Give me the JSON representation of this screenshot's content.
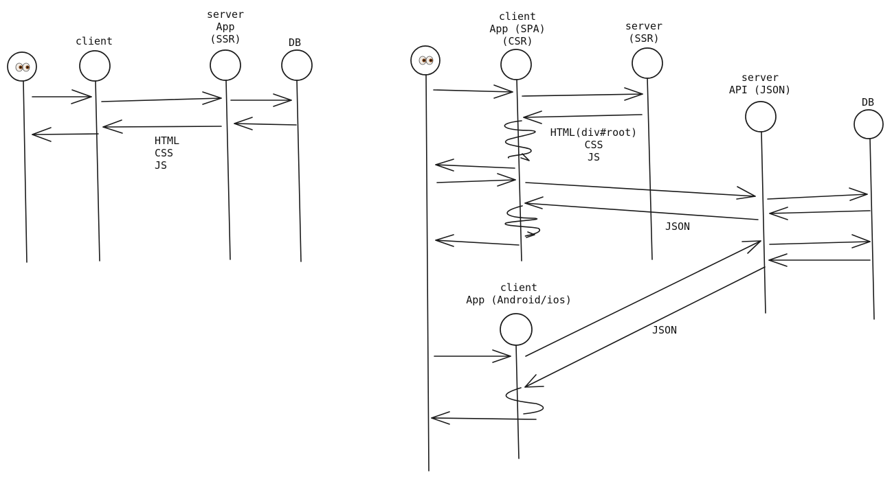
{
  "ssr_diagram": {
    "client_label": "client",
    "server_label_1": "server",
    "server_label_2": "App",
    "server_label_3": "(SSR)",
    "db_label": "DB",
    "response_1": "HTML",
    "response_2": "CSS",
    "response_3": "JS"
  },
  "csr_diagram": {
    "client_label_1": "client",
    "client_label_2": "App (SPA)",
    "client_label_3": "(CSR)",
    "ssr_server_label_1": "server",
    "ssr_server_label_2": "(SSR)",
    "api_server_label_1": "server",
    "api_server_label_2": "API (JSON)",
    "db_label": "DB",
    "html_response_1": "HTML(div#root)",
    "html_response_2": "CSS",
    "html_response_3": "JS",
    "json_label_1": "JSON",
    "mobile_label_1": "client",
    "mobile_label_2": "App (Android/ios)",
    "json_label_2": "JSON"
  }
}
